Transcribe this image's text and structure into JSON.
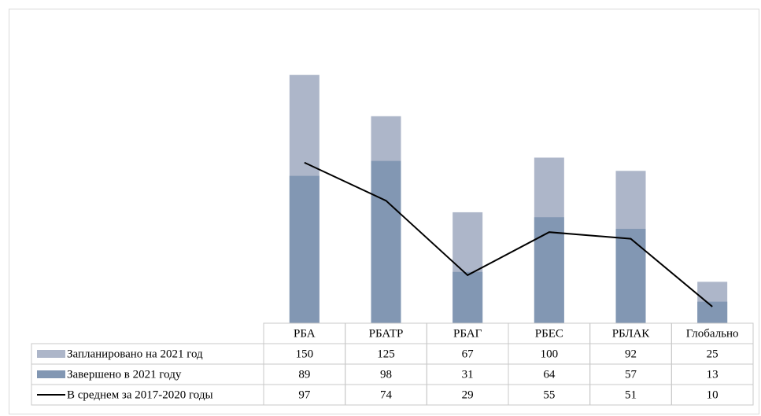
{
  "chart_data": {
    "type": "bar",
    "categories": [
      "РБА",
      "РБАТР",
      "РБАГ",
      "РБЕС",
      "РБЛАК",
      "Глобально"
    ],
    "series": [
      {
        "name": "Запланировано на 2021 год",
        "type": "bar",
        "color": "#adb6c9",
        "values": [
          150,
          125,
          67,
          100,
          92,
          25
        ]
      },
      {
        "name": "Завершено в 2021 году",
        "type": "bar",
        "color": "#8297b3",
        "values": [
          89,
          98,
          31,
          64,
          57,
          13
        ]
      },
      {
        "name": "В среднем за 2017-2020 годы",
        "type": "line",
        "color": "#000000",
        "values": [
          97,
          74,
          29,
          55,
          51,
          10
        ]
      }
    ],
    "ylim": [
      0,
      180
    ]
  }
}
